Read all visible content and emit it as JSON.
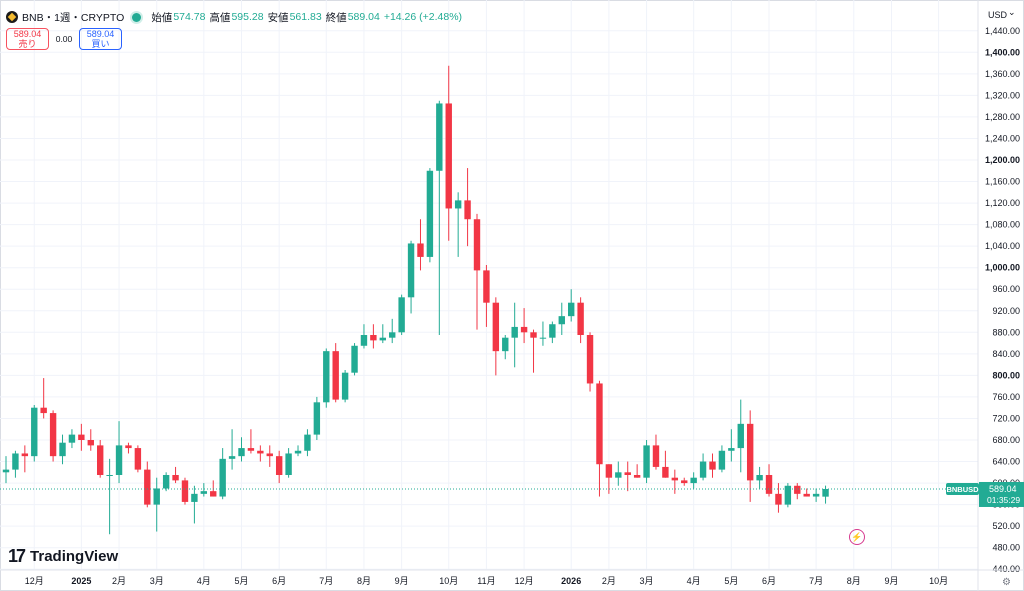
{
  "header": {
    "symbol": "BNB・1週・CRYPTO",
    "open_label": "始値",
    "open": "574.78",
    "high_label": "高値",
    "high": "595.28",
    "low_label": "安値",
    "low": "561.83",
    "close_label": "終値",
    "close": "589.04",
    "change": "+14.26 (+2.48%)"
  },
  "trade": {
    "sell_price": "589.04",
    "sell_label": "売り",
    "spread": "0.00",
    "buy_price": "589.04",
    "buy_label": "買い"
  },
  "currency": "USD",
  "currency_caret": "⌄",
  "brand": "TradingView",
  "brand_mark": "17",
  "bolt_icon_glyph": "⚡",
  "settings_glyph": "⚙",
  "price_tag": {
    "label": "BNBUSD",
    "price": "589.04",
    "countdown": "01:35:29"
  },
  "colors": {
    "up": "#22ab94",
    "down": "#f23645",
    "grid": "#f0f3fa",
    "text": "#131722"
  },
  "chart_data": {
    "type": "candlestick",
    "y_range": [
      420,
      1460
    ],
    "y_ticks": [
      "440.00",
      "480.00",
      "520.00",
      "560.00",
      "600.00",
      "640.00",
      "680.00",
      "720.00",
      "760.00",
      "800.00",
      "840.00",
      "880.00",
      "920.00",
      "960.00",
      "1,000.00",
      "1,040.00",
      "1,080.00",
      "1,120.00",
      "1,160.00",
      "1,200.00",
      "1,240.00",
      "1,280.00",
      "1,320.00",
      "1,360.00",
      "1,400.00",
      "1,440.00"
    ],
    "y_tick_values": [
      440,
      480,
      520,
      560,
      600,
      640,
      680,
      720,
      760,
      800,
      840,
      880,
      920,
      960,
      1000,
      1040,
      1080,
      1120,
      1160,
      1200,
      1240,
      1280,
      1320,
      1360,
      1400,
      1440
    ],
    "bold_ticks": [
      "800.00",
      "1,000.00",
      "1,200.00",
      "1,400.00"
    ],
    "x_labels": [
      "12月",
      "2025",
      "2月",
      "3月",
      "4月",
      "5月",
      "6月",
      "7月",
      "8月",
      "9月",
      "10月",
      "11月",
      "12月",
      "2026",
      "2月",
      "3月",
      "4月",
      "5月",
      "6月",
      "7月",
      "8月",
      "9月",
      "10月"
    ],
    "bold_x_labels": [
      "2025",
      "2026"
    ],
    "x_label_week_index": [
      3,
      8,
      12,
      16,
      21,
      25,
      29,
      34,
      38,
      42,
      47,
      51,
      55,
      60,
      64,
      68,
      73,
      77,
      81,
      86,
      90,
      94,
      99
    ],
    "candles": [
      {
        "o": 620,
        "h": 650,
        "l": 600,
        "c": 625
      },
      {
        "o": 625,
        "h": 660,
        "l": 610,
        "c": 655
      },
      {
        "o": 655,
        "h": 670,
        "l": 620,
        "c": 650
      },
      {
        "o": 650,
        "h": 745,
        "l": 640,
        "c": 740
      },
      {
        "o": 740,
        "h": 795,
        "l": 720,
        "c": 730
      },
      {
        "o": 730,
        "h": 735,
        "l": 640,
        "c": 650
      },
      {
        "o": 650,
        "h": 690,
        "l": 635,
        "c": 675
      },
      {
        "o": 675,
        "h": 700,
        "l": 665,
        "c": 690
      },
      {
        "o": 690,
        "h": 710,
        "l": 660,
        "c": 680
      },
      {
        "o": 680,
        "h": 700,
        "l": 660,
        "c": 670
      },
      {
        "o": 670,
        "h": 680,
        "l": 610,
        "c": 615
      },
      {
        "o": 615,
        "h": 645,
        "l": 505,
        "c": 615
      },
      {
        "o": 615,
        "h": 715,
        "l": 600,
        "c": 670
      },
      {
        "o": 670,
        "h": 675,
        "l": 655,
        "c": 665
      },
      {
        "o": 665,
        "h": 670,
        "l": 620,
        "c": 625
      },
      {
        "o": 625,
        "h": 640,
        "l": 555,
        "c": 560
      },
      {
        "o": 560,
        "h": 610,
        "l": 510,
        "c": 590
      },
      {
        "o": 590,
        "h": 620,
        "l": 585,
        "c": 615
      },
      {
        "o": 615,
        "h": 630,
        "l": 600,
        "c": 605
      },
      {
        "o": 605,
        "h": 610,
        "l": 560,
        "c": 565
      },
      {
        "o": 565,
        "h": 595,
        "l": 525,
        "c": 580
      },
      {
        "o": 580,
        "h": 600,
        "l": 575,
        "c": 585
      },
      {
        "o": 585,
        "h": 605,
        "l": 575,
        "c": 575
      },
      {
        "o": 575,
        "h": 665,
        "l": 570,
        "c": 645
      },
      {
        "o": 645,
        "h": 700,
        "l": 625,
        "c": 650
      },
      {
        "o": 650,
        "h": 685,
        "l": 640,
        "c": 665
      },
      {
        "o": 665,
        "h": 700,
        "l": 655,
        "c": 660
      },
      {
        "o": 660,
        "h": 670,
        "l": 640,
        "c": 655
      },
      {
        "o": 655,
        "h": 670,
        "l": 630,
        "c": 650
      },
      {
        "o": 650,
        "h": 660,
        "l": 600,
        "c": 615
      },
      {
        "o": 615,
        "h": 665,
        "l": 610,
        "c": 655
      },
      {
        "o": 655,
        "h": 670,
        "l": 650,
        "c": 660
      },
      {
        "o": 660,
        "h": 700,
        "l": 650,
        "c": 690
      },
      {
        "o": 690,
        "h": 760,
        "l": 680,
        "c": 750
      },
      {
        "o": 750,
        "h": 850,
        "l": 740,
        "c": 845
      },
      {
        "o": 845,
        "h": 860,
        "l": 750,
        "c": 755
      },
      {
        "o": 755,
        "h": 810,
        "l": 750,
        "c": 805
      },
      {
        "o": 805,
        "h": 860,
        "l": 800,
        "c": 855
      },
      {
        "o": 855,
        "h": 895,
        "l": 850,
        "c": 875
      },
      {
        "o": 875,
        "h": 895,
        "l": 850,
        "c": 865
      },
      {
        "o": 865,
        "h": 895,
        "l": 860,
        "c": 870
      },
      {
        "o": 870,
        "h": 905,
        "l": 860,
        "c": 880
      },
      {
        "o": 880,
        "h": 950,
        "l": 875,
        "c": 945
      },
      {
        "o": 945,
        "h": 1050,
        "l": 915,
        "c": 1045
      },
      {
        "o": 1045,
        "h": 1090,
        "l": 995,
        "c": 1020
      },
      {
        "o": 1020,
        "h": 1185,
        "l": 1010,
        "c": 1180
      },
      {
        "o": 1180,
        "h": 1310,
        "l": 875,
        "c": 1305
      },
      {
        "o": 1305,
        "h": 1375,
        "l": 1050,
        "c": 1110
      },
      {
        "o": 1110,
        "h": 1140,
        "l": 1020,
        "c": 1125
      },
      {
        "o": 1125,
        "h": 1185,
        "l": 1040,
        "c": 1090
      },
      {
        "o": 1090,
        "h": 1100,
        "l": 885,
        "c": 995
      },
      {
        "o": 995,
        "h": 1005,
        "l": 890,
        "c": 935
      },
      {
        "o": 935,
        "h": 945,
        "l": 800,
        "c": 845
      },
      {
        "o": 845,
        "h": 875,
        "l": 830,
        "c": 870
      },
      {
        "o": 870,
        "h": 935,
        "l": 815,
        "c": 890
      },
      {
        "o": 890,
        "h": 925,
        "l": 860,
        "c": 880
      },
      {
        "o": 880,
        "h": 885,
        "l": 805,
        "c": 870
      },
      {
        "o": 870,
        "h": 900,
        "l": 855,
        "c": 870
      },
      {
        "o": 870,
        "h": 900,
        "l": 860,
        "c": 895
      },
      {
        "o": 895,
        "h": 935,
        "l": 875,
        "c": 910
      },
      {
        "o": 910,
        "h": 960,
        "l": 900,
        "c": 935
      },
      {
        "o": 935,
        "h": 945,
        "l": 860,
        "c": 875
      },
      {
        "o": 875,
        "h": 880,
        "l": 770,
        "c": 785
      },
      {
        "o": 785,
        "h": 790,
        "l": 575,
        "c": 635
      },
      {
        "o": 635,
        "h": 635,
        "l": 580,
        "c": 610
      },
      {
        "o": 610,
        "h": 640,
        "l": 595,
        "c": 620
      },
      {
        "o": 620,
        "h": 640,
        "l": 585,
        "c": 615
      },
      {
        "o": 615,
        "h": 635,
        "l": 610,
        "c": 610
      },
      {
        "o": 610,
        "h": 680,
        "l": 600,
        "c": 670
      },
      {
        "o": 670,
        "h": 690,
        "l": 625,
        "c": 630
      },
      {
        "o": 630,
        "h": 660,
        "l": 610,
        "c": 610
      },
      {
        "o": 610,
        "h": 625,
        "l": 580,
        "c": 605
      },
      {
        "o": 605,
        "h": 610,
        "l": 595,
        "c": 600
      },
      {
        "o": 600,
        "h": 620,
        "l": 590,
        "c": 610
      },
      {
        "o": 610,
        "h": 655,
        "l": 605,
        "c": 640
      },
      {
        "o": 640,
        "h": 655,
        "l": 610,
        "c": 625
      },
      {
        "o": 625,
        "h": 670,
        "l": 620,
        "c": 660
      },
      {
        "o": 660,
        "h": 700,
        "l": 640,
        "c": 665
      },
      {
        "o": 665,
        "h": 755,
        "l": 620,
        "c": 710
      },
      {
        "o": 710,
        "h": 735,
        "l": 565,
        "c": 605
      },
      {
        "o": 605,
        "h": 630,
        "l": 590,
        "c": 615
      },
      {
        "o": 615,
        "h": 635,
        "l": 575,
        "c": 580
      },
      {
        "o": 580,
        "h": 600,
        "l": 545,
        "c": 560
      },
      {
        "o": 560,
        "h": 600,
        "l": 555,
        "c": 595
      },
      {
        "o": 595,
        "h": 600,
        "l": 570,
        "c": 580
      },
      {
        "o": 580,
        "h": 590,
        "l": 575,
        "c": 575
      },
      {
        "o": 575,
        "h": 590,
        "l": 565,
        "c": 580
      },
      {
        "o": 574.78,
        "h": 595.28,
        "l": 561.83,
        "c": 589.04
      }
    ]
  }
}
